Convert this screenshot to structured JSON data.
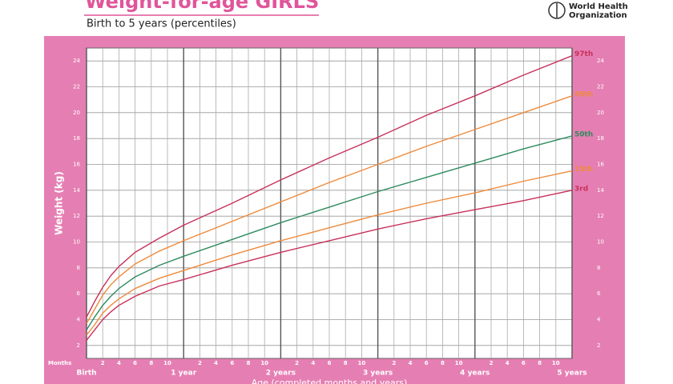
{
  "header": {
    "logo_line1": "World Health",
    "logo_line2": "Organization"
  },
  "chart_data": {
    "type": "line",
    "title": "Weight-for-age GIRLS",
    "subtitle": "Birth to 5 years (percentiles)",
    "x_label": "Age (completed months and years)",
    "y_label": "Weight (kg)",
    "x_unit_label": "Months",
    "x": [
      0,
      1,
      2,
      3,
      4,
      6,
      9,
      12,
      18,
      24,
      30,
      36,
      42,
      48,
      54,
      60
    ],
    "series": [
      {
        "name": "97th",
        "color": "#c8305a",
        "values": [
          4.2,
          5.4,
          6.5,
          7.4,
          8.1,
          9.2,
          10.3,
          11.3,
          13.0,
          14.8,
          16.5,
          18.1,
          19.8,
          21.3,
          22.9,
          24.4
        ]
      },
      {
        "name": "85th",
        "color": "#ef8a3a",
        "values": [
          3.7,
          4.8,
          5.9,
          6.7,
          7.3,
          8.3,
          9.3,
          10.1,
          11.6,
          13.1,
          14.6,
          16.0,
          17.4,
          18.7,
          20.0,
          21.3
        ]
      },
      {
        "name": "50th",
        "color": "#2e8b5f",
        "values": [
          3.2,
          4.2,
          5.1,
          5.8,
          6.4,
          7.3,
          8.2,
          8.9,
          10.2,
          11.5,
          12.7,
          13.9,
          15.0,
          16.1,
          17.2,
          18.2
        ]
      },
      {
        "name": "15th",
        "color": "#ef8a3a",
        "values": [
          2.8,
          3.6,
          4.5,
          5.1,
          5.6,
          6.4,
          7.2,
          7.8,
          9.0,
          10.1,
          11.1,
          12.1,
          13.0,
          13.8,
          14.7,
          15.5
        ]
      },
      {
        "name": "3rd",
        "color": "#c8305a",
        "values": [
          2.4,
          3.2,
          4.0,
          4.6,
          5.1,
          5.8,
          6.6,
          7.1,
          8.2,
          9.2,
          10.1,
          11.0,
          11.8,
          12.5,
          13.2,
          14.0
        ]
      }
    ],
    "xlim": [
      0,
      60
    ],
    "xticks": [
      {
        "value": 0,
        "label": "Birth"
      },
      2,
      4,
      6,
      8,
      10,
      {
        "value": 12,
        "label": "1 year"
      },
      {
        "value": 14,
        "label": "2"
      },
      {
        "value": 16,
        "label": "4"
      },
      {
        "value": 18,
        "label": "6"
      },
      {
        "value": 20,
        "label": "8"
      },
      {
        "value": 22,
        "label": "10"
      },
      {
        "value": 24,
        "label": "2 years"
      },
      {
        "value": 26,
        "label": "2"
      },
      {
        "value": 28,
        "label": "4"
      },
      {
        "value": 30,
        "label": "6"
      },
      {
        "value": 32,
        "label": "8"
      },
      {
        "value": 34,
        "label": "10"
      },
      {
        "value": 36,
        "label": "3 years"
      },
      {
        "value": 38,
        "label": "2"
      },
      {
        "value": 40,
        "label": "4"
      },
      {
        "value": 42,
        "label": "6"
      },
      {
        "value": 44,
        "label": "8"
      },
      {
        "value": 46,
        "label": "10"
      },
      {
        "value": 48,
        "label": "4 years"
      },
      {
        "value": 50,
        "label": "2"
      },
      {
        "value": 52,
        "label": "4"
      },
      {
        "value": 54,
        "label": "6"
      },
      {
        "value": 56,
        "label": "8"
      },
      {
        "value": 58,
        "label": "10"
      },
      {
        "value": 60,
        "label": "5 years"
      }
    ],
    "ylim": [
      1,
      25
    ],
    "yticks": [
      2,
      4,
      6,
      8,
      10,
      12,
      14,
      16,
      18,
      20,
      22,
      24
    ],
    "grid": true
  }
}
